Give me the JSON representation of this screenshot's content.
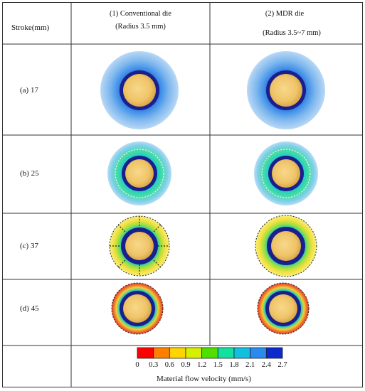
{
  "header": {
    "stroke_label": "Stroke(mm)",
    "col1_title": "(1)  Conventional die",
    "col1_sub": "(Radius 3.5 mm)",
    "col2_title": "(2)  MDR die",
    "col2_sub": "(Radius 3.5~7 mm)"
  },
  "rows": [
    {
      "label": "(a)  17"
    },
    {
      "label": "(b)  25"
    },
    {
      "label": "(c)  37"
    },
    {
      "label": "(d)  45"
    }
  ],
  "colorbar": {
    "ticks": [
      "0",
      "0.3",
      "0.6",
      "0.9",
      "1.2",
      "1.5",
      "1.8",
      "2.1",
      "2.4",
      "2.7"
    ],
    "colors": [
      "#ff0000",
      "#ff7f00",
      "#ffd400",
      "#d6f000",
      "#4fe000",
      "#10e0a0",
      "#10c0e0",
      "#2a8af0",
      "#0a2ad0"
    ],
    "caption": "Material flow velocity (mm/s)"
  },
  "colors": {
    "billet_core": "#f2c86a",
    "billet_rim": "#d9a84a",
    "dark_ring": "#1a1f8c",
    "light_blue": "#a9cdf0"
  }
}
